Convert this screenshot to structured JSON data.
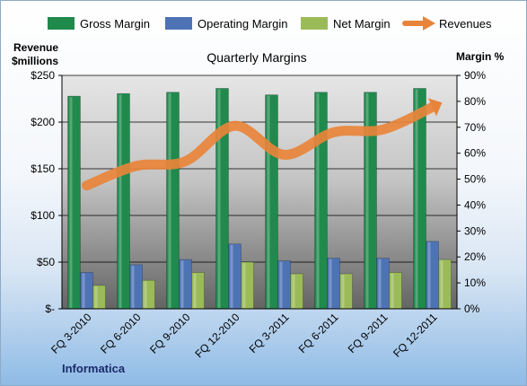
{
  "chart_data": {
    "type": "bar",
    "title": "Quarterly Margins",
    "categories": [
      "FQ 3-2010",
      "FQ 6-2010",
      "FQ 9-2010",
      "FQ 12-2010",
      "FQ 3-2011",
      "FQ 6-2011",
      "FQ 9-2011",
      "FQ 12-2011"
    ],
    "series": [
      {
        "name": "Gross Margin",
        "axis": "right",
        "color": "#1f8a4c",
        "values": [
          82,
          83,
          83.5,
          85,
          82.5,
          83.5,
          83.5,
          85
        ]
      },
      {
        "name": "Operating Margin",
        "axis": "right",
        "color": "#4e73b5",
        "values": [
          14,
          17,
          19,
          25,
          18.5,
          19.5,
          19.5,
          26
        ]
      },
      {
        "name": "Net Margin",
        "axis": "right",
        "color": "#9bbb59",
        "values": [
          9,
          11,
          14,
          18,
          13.5,
          13.5,
          14,
          19
        ]
      },
      {
        "name": "Revenues",
        "type": "line",
        "axis": "left",
        "color": "#e8843a",
        "values": [
          132,
          153,
          158,
          196,
          165,
          189,
          192,
          216
        ]
      }
    ],
    "ylabel_left": "Revenue\n$millions",
    "ylabel_right": "Margin %",
    "ylim_left": [
      0,
      250
    ],
    "ylim_right": [
      0,
      90
    ],
    "yticks_left": [
      "$-",
      "$50",
      "$100",
      "$150",
      "$200",
      "$250"
    ],
    "yticks_right": [
      "0%",
      "10%",
      "20%",
      "30%",
      "40%",
      "50%",
      "60%",
      "70%",
      "80%",
      "90%"
    ],
    "legend_position": "top",
    "grid": true
  },
  "watermark": "Informatica",
  "colors": {
    "plot_top": "#d9d9d9",
    "plot_bottom": "#6e6e6e",
    "gridline": "#000000"
  }
}
